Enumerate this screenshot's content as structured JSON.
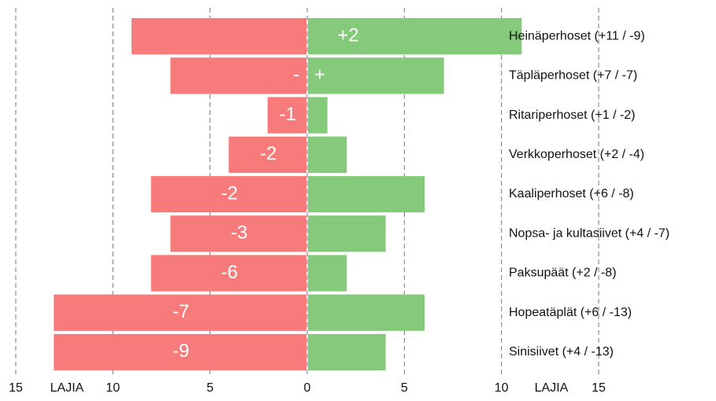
{
  "chart_data": {
    "type": "diverging-bar",
    "categories": [
      "Heinäperhoset (+11 / -9)",
      "Täpläperhoset (+7 / -7)",
      "Ritariperhoset (+1 / -2)",
      "Verkkoperhoset (+2 / -4)",
      "Kaaliperhoset (+6 / -8)",
      "Nopsa- ja kultasiivet (+4 / -7)",
      "Paksupäät (+2 / -8)",
      "Hopeatäplät (+6 / -13)",
      "Sinisiivet (+4 / -13)"
    ],
    "series": [
      {
        "color": "#85c97a",
        "values": [
          11,
          7,
          1,
          2,
          6,
          4,
          2,
          6,
          4
        ]
      },
      {
        "color": "#f77b7b",
        "values": [
          -9,
          -7,
          -2,
          -4,
          -8,
          -7,
          -8,
          -13,
          -13
        ]
      }
    ],
    "gain_labels": [
      "+2",
      "+",
      null,
      null,
      null,
      null,
      null,
      null,
      null
    ],
    "loss_labels": [
      null,
      "-",
      "-1",
      "-2",
      "-2",
      "-3",
      "-6",
      "-7",
      "-9"
    ],
    "xlabel": "LAJIA",
    "xlim": [
      -15,
      15
    ],
    "xticks": [
      {
        "value": -15,
        "label": "15"
      },
      {
        "value": -10,
        "label": "10"
      },
      {
        "value": -5,
        "label": "5"
      },
      0,
      5,
      10,
      15
    ],
    "grid": true
  }
}
